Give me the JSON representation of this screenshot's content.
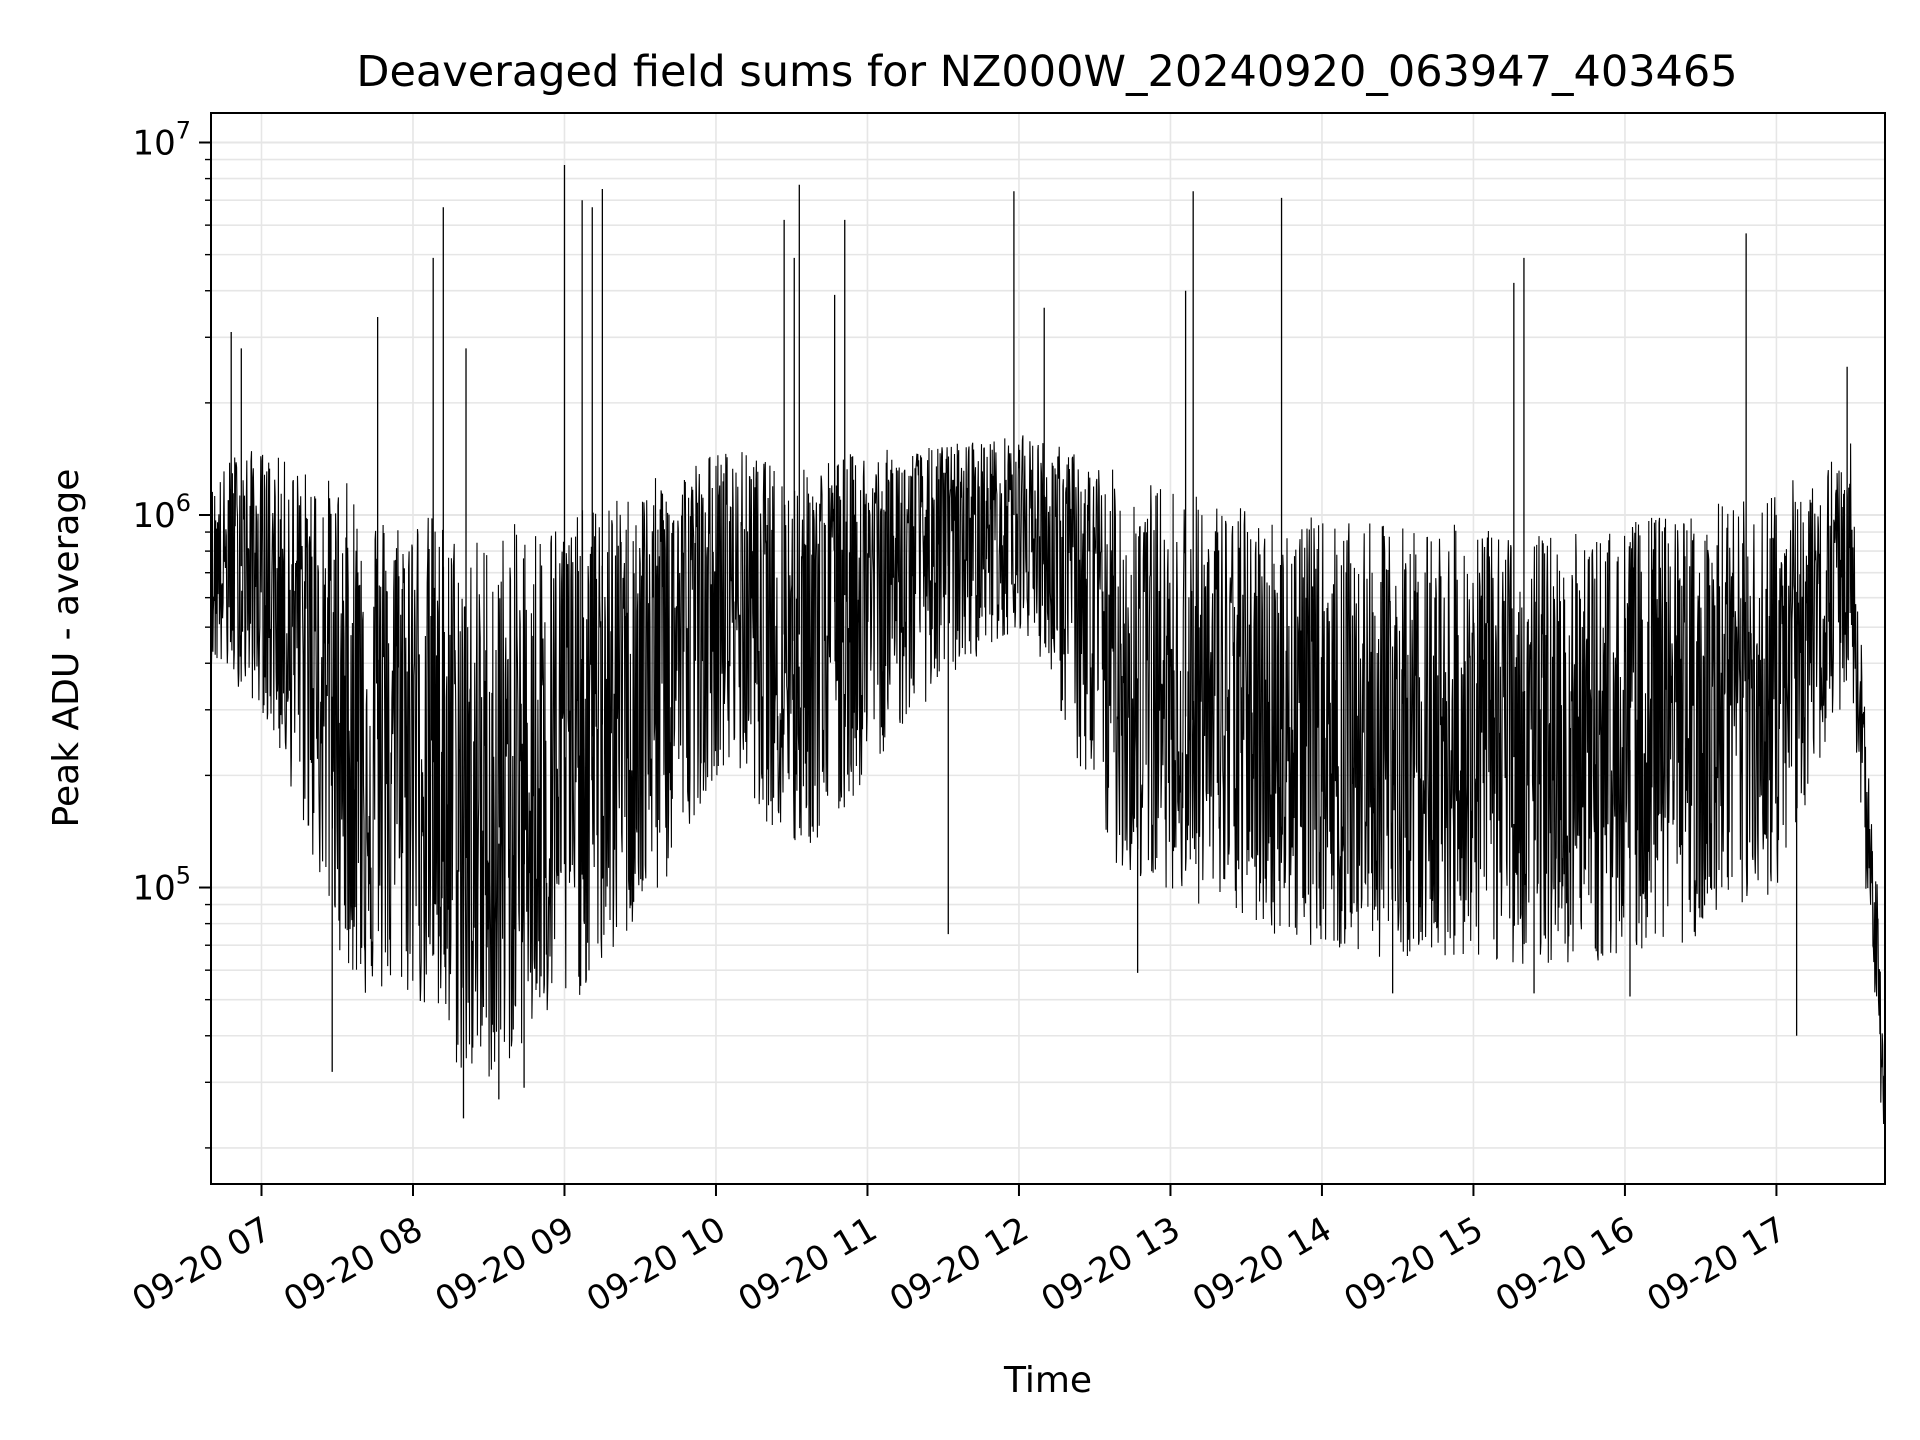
{
  "chart_data": {
    "type": "line",
    "title": "Deaveraged field sums for NZ000W_20240920_063947_403465",
    "xlabel": "Time",
    "ylabel": "Peak ADU - average",
    "yscale": "log",
    "ylim": [
      16000,
      12000000
    ],
    "xlim": [
      "2024-09-20 06:40",
      "2024-09-20 17:43"
    ],
    "grid": true,
    "line_color": "#000000",
    "grid_color": "#e6e6e6",
    "x_ticks": [
      {
        "value": "2024-09-20 07:00",
        "label": "09-20 07"
      },
      {
        "value": "2024-09-20 08:00",
        "label": "09-20 08"
      },
      {
        "value": "2024-09-20 09:00",
        "label": "09-20 09"
      },
      {
        "value": "2024-09-20 10:00",
        "label": "09-20 10"
      },
      {
        "value": "2024-09-20 11:00",
        "label": "09-20 11"
      },
      {
        "value": "2024-09-20 12:00",
        "label": "09-20 12"
      },
      {
        "value": "2024-09-20 13:00",
        "label": "09-20 13"
      },
      {
        "value": "2024-09-20 14:00",
        "label": "09-20 14"
      },
      {
        "value": "2024-09-20 15:00",
        "label": "09-20 15"
      },
      {
        "value": "2024-09-20 16:00",
        "label": "09-20 16"
      },
      {
        "value": "2024-09-20 17:00",
        "label": "09-20 17"
      }
    ],
    "y_ticks": [
      {
        "value": 100000,
        "base": "10",
        "exp": "5"
      },
      {
        "value": 1000000,
        "base": "10",
        "exp": "6"
      },
      {
        "value": 10000000,
        "base": "10",
        "exp": "7"
      }
    ],
    "series": [
      {
        "x": [
          "2024-09-20 06:40",
          "2024-09-20 06:50",
          "2024-09-20 07:00",
          "2024-09-20 07:10",
          "2024-09-20 07:20",
          "2024-09-20 07:30",
          "2024-09-20 07:40",
          "2024-09-20 07:50",
          "2024-09-20 08:00",
          "2024-09-20 08:10",
          "2024-09-20 08:20",
          "2024-09-20 08:30",
          "2024-09-20 08:40",
          "2024-09-20 08:50",
          "2024-09-20 09:00",
          "2024-09-20 09:10",
          "2024-09-20 09:20",
          "2024-09-20 09:30",
          "2024-09-20 09:40",
          "2024-09-20 09:50",
          "2024-09-20 10:00",
          "2024-09-20 10:10",
          "2024-09-20 10:20",
          "2024-09-20 10:30",
          "2024-09-20 10:40",
          "2024-09-20 10:50",
          "2024-09-20 11:00",
          "2024-09-20 11:10",
          "2024-09-20 11:20",
          "2024-09-20 11:30",
          "2024-09-20 11:40",
          "2024-09-20 11:50",
          "2024-09-20 12:00",
          "2024-09-20 12:10",
          "2024-09-20 12:20",
          "2024-09-20 12:30",
          "2024-09-20 12:40",
          "2024-09-20 12:50",
          "2024-09-20 13:00",
          "2024-09-20 13:10",
          "2024-09-20 13:20",
          "2024-09-20 13:30",
          "2024-09-20 13:40",
          "2024-09-20 13:50",
          "2024-09-20 14:00",
          "2024-09-20 14:10",
          "2024-09-20 14:20",
          "2024-09-20 14:30",
          "2024-09-20 14:40",
          "2024-09-20 14:50",
          "2024-09-20 15:00",
          "2024-09-20 15:10",
          "2024-09-20 15:20",
          "2024-09-20 15:30",
          "2024-09-20 15:40",
          "2024-09-20 15:50",
          "2024-09-20 16:00",
          "2024-09-20 16:10",
          "2024-09-20 16:20",
          "2024-09-20 16:30",
          "2024-09-20 16:40",
          "2024-09-20 16:50",
          "2024-09-20 17:00",
          "2024-09-20 17:10",
          "2024-09-20 17:20",
          "2024-09-20 17:30",
          "2024-09-20 17:35",
          "2024-09-20 17:40",
          "2024-09-20 17:43"
        ],
        "y": [
          700000,
          750000,
          650000,
          600000,
          450000,
          300000,
          250000,
          250000,
          300000,
          200000,
          120000,
          120000,
          150000,
          200000,
          220000,
          250000,
          300000,
          400000,
          450000,
          550000,
          600000,
          650000,
          550000,
          450000,
          550000,
          600000,
          700000,
          750000,
          850000,
          900000,
          950000,
          1000000,
          1000000,
          900000,
          700000,
          500000,
          400000,
          350000,
          300000,
          280000,
          280000,
          270000,
          270000,
          260000,
          250000,
          240000,
          230000,
          230000,
          230000,
          230000,
          230000,
          230000,
          220000,
          220000,
          220000,
          220000,
          230000,
          250000,
          260000,
          270000,
          280000,
          300000,
          350000,
          450000,
          600000,
          800000,
          200000,
          60000,
          25000
        ],
        "low": [
          400000,
          350000,
          300000,
          200000,
          120000,
          70000,
          50000,
          50000,
          50000,
          40000,
          30000,
          30000,
          35000,
          40000,
          45000,
          55000,
          65000,
          80000,
          100000,
          150000,
          200000,
          200000,
          150000,
          120000,
          130000,
          150000,
          200000,
          250000,
          300000,
          350000,
          400000,
          450000,
          500000,
          400000,
          250000,
          150000,
          110000,
          100000,
          100000,
          90000,
          85000,
          80000,
          75000,
          70000,
          70000,
          65000,
          65000,
          65000,
          65000,
          65000,
          65000,
          62000,
          62000,
          62000,
          62000,
          62000,
          65000,
          70000,
          70000,
          72000,
          75000,
          80000,
          100000,
          150000,
          250000,
          350000,
          100000,
          35000,
          18000
        ],
        "high": [
          1200000,
          1500000,
          1500000,
          1400000,
          1300000,
          1250000,
          1200000,
          1000000,
          1050000,
          1000000,
          900000,
          900000,
          950000,
          1000000,
          1000000,
          1050000,
          1100000,
          1200000,
          1300000,
          1400000,
          1500000,
          1500000,
          1400000,
          1300000,
          1400000,
          1450000,
          1500000,
          1500000,
          1500000,
          1550000,
          1600000,
          1600000,
          1650000,
          1600000,
          1500000,
          1400000,
          1300000,
          1250000,
          1200000,
          1150000,
          1100000,
          1050000,
          1000000,
          1000000,
          980000,
          950000,
          950000,
          950000,
          950000,
          950000,
          920000,
          900000,
          900000,
          900000,
          900000,
          900000,
          950000,
          1000000,
          1000000,
          1050000,
          1100000,
          1100000,
          1200000,
          1300000,
          1400000,
          1600000,
          300000,
          100000,
          30000
        ]
      }
    ],
    "peaks": [
      {
        "x": "2024-09-20 06:48",
        "y": 3100000
      },
      {
        "x": "2024-09-20 06:52",
        "y": 2800000
      },
      {
        "x": "2024-09-20 07:46",
        "y": 3400000
      },
      {
        "x": "2024-09-20 08:08",
        "y": 4900000
      },
      {
        "x": "2024-09-20 08:12",
        "y": 6700000
      },
      {
        "x": "2024-09-20 08:21",
        "y": 2800000
      },
      {
        "x": "2024-09-20 09:00",
        "y": 8700000
      },
      {
        "x": "2024-09-20 09:07",
        "y": 7000000
      },
      {
        "x": "2024-09-20 09:11",
        "y": 6700000
      },
      {
        "x": "2024-09-20 09:15",
        "y": 7500000
      },
      {
        "x": "2024-09-20 10:27",
        "y": 6200000
      },
      {
        "x": "2024-09-20 10:31",
        "y": 4900000
      },
      {
        "x": "2024-09-20 10:33",
        "y": 7700000
      },
      {
        "x": "2024-09-20 10:47",
        "y": 3900000
      },
      {
        "x": "2024-09-20 10:51",
        "y": 6200000
      },
      {
        "x": "2024-09-20 11:58",
        "y": 7400000
      },
      {
        "x": "2024-09-20 12:10",
        "y": 3600000
      },
      {
        "x": "2024-09-20 13:06",
        "y": 4000000
      },
      {
        "x": "2024-09-20 13:09",
        "y": 7400000
      },
      {
        "x": "2024-09-20 13:44",
        "y": 7100000
      },
      {
        "x": "2024-09-20 15:16",
        "y": 4200000
      },
      {
        "x": "2024-09-20 15:20",
        "y": 4900000
      },
      {
        "x": "2024-09-20 16:48",
        "y": 5700000
      },
      {
        "x": "2024-09-20 17:28",
        "y": 2500000
      }
    ],
    "dips": [
      {
        "x": "2024-09-20 07:28",
        "y": 32000
      },
      {
        "x": "2024-09-20 08:20",
        "y": 24000
      },
      {
        "x": "2024-09-20 08:34",
        "y": 27000
      },
      {
        "x": "2024-09-20 08:44",
        "y": 29000
      },
      {
        "x": "2024-09-20 11:32",
        "y": 75000
      },
      {
        "x": "2024-09-20 12:47",
        "y": 59000
      },
      {
        "x": "2024-09-20 14:28",
        "y": 52000
      },
      {
        "x": "2024-09-20 15:24",
        "y": 52000
      },
      {
        "x": "2024-09-20 16:02",
        "y": 51000
      },
      {
        "x": "2024-09-20 17:08",
        "y": 40000
      },
      {
        "x": "2024-09-20 17:43",
        "y": 19000
      }
    ]
  }
}
